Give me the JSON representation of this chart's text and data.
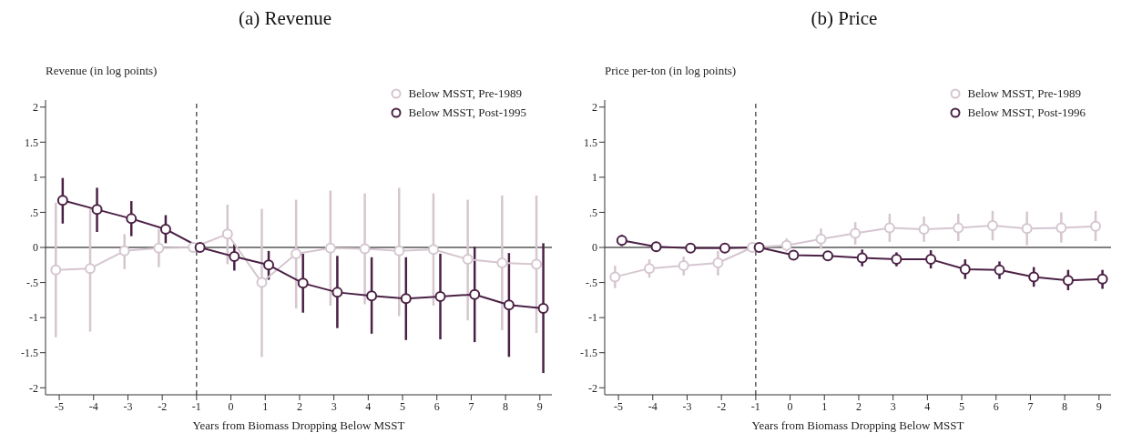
{
  "chart_data": [
    {
      "type": "line",
      "title": "(a) Revenue",
      "ylabel": "Revenue (in log points)",
      "xlabel": "Years from Biomass Dropping Below MSST",
      "xlim": [
        -5.4,
        9.35
      ],
      "xticks": [
        -5,
        -4,
        -3,
        -2,
        -1,
        0,
        1,
        2,
        3,
        4,
        5,
        6,
        7,
        8,
        9
      ],
      "ylim": [
        -2.1,
        2.1
      ],
      "yticks": [
        {
          "value": -2,
          "label": "-2"
        },
        {
          "value": -1.5,
          "label": "-1.5"
        },
        {
          "value": -1,
          "label": "-1"
        },
        {
          "value": -0.5,
          "label": "-.5"
        },
        {
          "value": 0,
          "label": "0"
        },
        {
          "value": 0.5,
          "label": ".5"
        },
        {
          "value": 1,
          "label": "1"
        },
        {
          "value": 1.5,
          "label": "1.5"
        },
        {
          "value": 2,
          "label": "2"
        }
      ],
      "legend": "top right",
      "marker": "circle",
      "line_style": "solid",
      "ref_lines": [
        {
          "axis": "x",
          "value": -1,
          "line_style": "dashed",
          "color": "#333333"
        },
        {
          "axis": "y",
          "value": 0,
          "line_style": "solid",
          "color": "#000000"
        }
      ],
      "series": [
        {
          "name": "Below MSST, Pre-1989",
          "color": "#d5c6d0",
          "x": [
            -5.1,
            -4.1,
            -3.1,
            -2.1,
            -1.1,
            -0.1,
            0.9,
            1.9,
            2.9,
            3.9,
            4.9,
            5.9,
            6.9,
            7.9,
            8.9
          ],
          "values": [
            -0.32,
            -0.3,
            -0.05,
            -0.01,
            0,
            0.19,
            -0.5,
            -0.09,
            -0.01,
            -0.02,
            -0.05,
            -0.03,
            -0.17,
            -0.22,
            -0.24
          ],
          "errors": [
            [
              -1.28,
              0.64
            ],
            [
              -1.2,
              0.55
            ],
            [
              -0.31,
              0.19
            ],
            [
              -0.28,
              0.26
            ],
            null,
            [
              -0.24,
              0.61
            ],
            [
              -1.56,
              0.55
            ],
            [
              -0.87,
              0.68
            ],
            [
              -0.83,
              0.81
            ],
            [
              -0.81,
              0.77
            ],
            [
              -0.98,
              0.85
            ],
            [
              -0.83,
              0.77
            ],
            [
              -1.04,
              0.68
            ],
            [
              -1.18,
              0.74
            ],
            [
              -1.22,
              0.74
            ]
          ]
        },
        {
          "name": "Below MSST, Post-1995",
          "color": "#4b2145",
          "x": [
            -4.9,
            -3.9,
            -2.9,
            -1.9,
            -0.9,
            0.1,
            1.1,
            2.1,
            3.1,
            4.1,
            5.1,
            6.1,
            7.1,
            8.1,
            9.1
          ],
          "values": [
            0.67,
            0.54,
            0.41,
            0.26,
            0,
            -0.13,
            -0.25,
            -0.51,
            -0.64,
            -0.69,
            -0.73,
            -0.7,
            -0.67,
            -0.82,
            -0.87
          ],
          "errors": [
            [
              0.34,
              0.99
            ],
            [
              0.22,
              0.85
            ],
            [
              0.16,
              0.66
            ],
            [
              0.06,
              0.46
            ],
            null,
            [
              -0.33,
              0.05
            ],
            [
              -0.46,
              -0.05
            ],
            [
              -0.93,
              -0.09
            ],
            [
              -1.15,
              -0.12
            ],
            [
              -1.23,
              -0.14
            ],
            [
              -1.32,
              -0.14
            ],
            [
              -1.31,
              -0.09
            ],
            [
              -1.35,
              0.01
            ],
            [
              -1.56,
              -0.08
            ],
            [
              -1.79,
              0.06
            ]
          ]
        }
      ]
    },
    {
      "type": "line",
      "title": "(b) Price",
      "ylabel": "Price per-ton (in log points)",
      "xlabel": "Years from Biomass Dropping Below MSST",
      "xlim": [
        -5.4,
        9.35
      ],
      "xticks": [
        -5,
        -4,
        -3,
        -2,
        -1,
        0,
        1,
        2,
        3,
        4,
        5,
        6,
        7,
        8,
        9
      ],
      "ylim": [
        -2.1,
        2.1
      ],
      "yticks": [
        {
          "value": -2,
          "label": "-2"
        },
        {
          "value": -1.5,
          "label": "-1.5"
        },
        {
          "value": -1,
          "label": "-1"
        },
        {
          "value": -0.5,
          "label": "-.5"
        },
        {
          "value": 0,
          "label": "0"
        },
        {
          "value": 0.5,
          "label": ".5"
        },
        {
          "value": 1,
          "label": "1"
        },
        {
          "value": 1.5,
          "label": "1.5"
        },
        {
          "value": 2,
          "label": "2"
        }
      ],
      "legend": "top right",
      "marker": "circle",
      "line_style": "solid",
      "ref_lines": [
        {
          "axis": "x",
          "value": -1,
          "line_style": "dashed",
          "color": "#333333"
        },
        {
          "axis": "y",
          "value": 0,
          "line_style": "solid",
          "color": "#000000"
        }
      ],
      "series": [
        {
          "name": "Below MSST, Pre-1989",
          "color": "#d5c6d0",
          "x": [
            -5.1,
            -4.1,
            -3.1,
            -2.1,
            -1.1,
            -0.1,
            0.9,
            1.9,
            2.9,
            3.9,
            4.9,
            5.9,
            6.9,
            7.9,
            8.9
          ],
          "values": [
            -0.42,
            -0.3,
            -0.26,
            -0.22,
            0,
            0.03,
            0.12,
            0.2,
            0.28,
            0.26,
            0.28,
            0.31,
            0.27,
            0.28,
            0.3
          ],
          "errors": [
            [
              -0.58,
              -0.26
            ],
            [
              -0.43,
              -0.17
            ],
            [
              -0.4,
              -0.13
            ],
            [
              -0.4,
              -0.05
            ],
            null,
            [
              -0.06,
              0.13
            ],
            [
              -0.02,
              0.27
            ],
            [
              0.04,
              0.36
            ],
            [
              0.08,
              0.48
            ],
            [
              0.08,
              0.44
            ],
            [
              0.09,
              0.48
            ],
            [
              0.1,
              0.52
            ],
            [
              0.03,
              0.51
            ],
            [
              0.07,
              0.5
            ],
            [
              0.09,
              0.52
            ]
          ]
        },
        {
          "name": "Below MSST, Post-1996",
          "color": "#4b2145",
          "x": [
            -4.9,
            -3.9,
            -2.9,
            -1.9,
            -0.9,
            0.1,
            1.1,
            2.1,
            3.1,
            4.1,
            5.1,
            6.1,
            7.1,
            8.1,
            9.1
          ],
          "values": [
            0.1,
            0.01,
            -0.01,
            -0.01,
            0,
            -0.11,
            -0.12,
            -0.15,
            -0.17,
            -0.17,
            -0.31,
            -0.32,
            -0.42,
            -0.47,
            -0.45
          ],
          "errors": [
            [
              0.02,
              0.18
            ],
            [
              -0.06,
              0.08
            ],
            null,
            null,
            null,
            null,
            null,
            [
              -0.27,
              -0.03
            ],
            [
              -0.27,
              -0.07
            ],
            [
              -0.3,
              -0.04
            ],
            [
              -0.45,
              -0.17
            ],
            [
              -0.45,
              -0.2
            ],
            [
              -0.56,
              -0.28
            ],
            [
              -0.61,
              -0.32
            ],
            [
              -0.59,
              -0.32
            ]
          ]
        }
      ]
    }
  ]
}
